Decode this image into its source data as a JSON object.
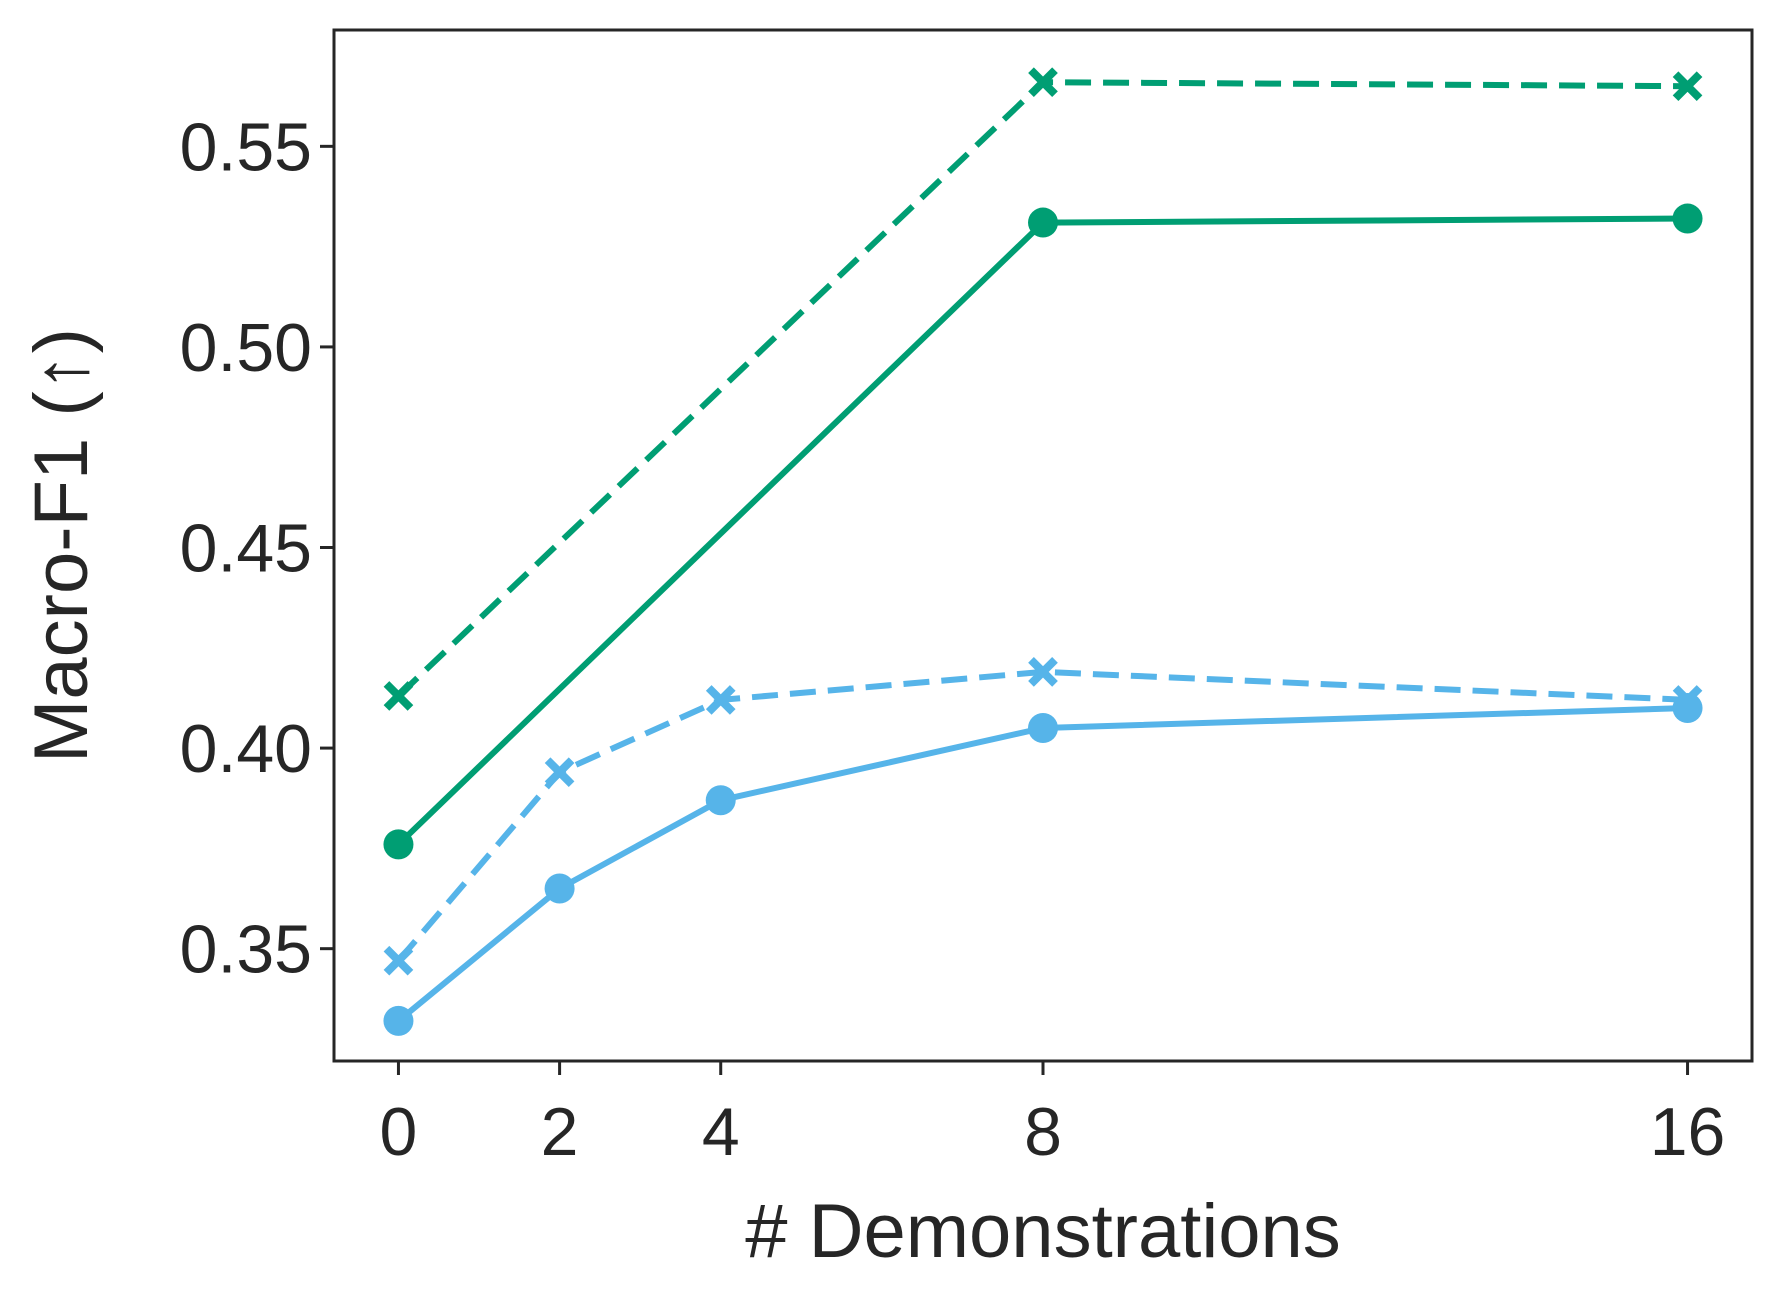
{
  "chart_data": {
    "type": "line",
    "title": "",
    "xlabel": "# Demonstrations",
    "ylabel": "Macro-F1 (↑)",
    "x": [
      0,
      2,
      4,
      8,
      16
    ],
    "x_tick_labels": [
      "0",
      "2",
      "4",
      "8",
      "16"
    ],
    "y_ticks": [
      0.35,
      0.4,
      0.45,
      0.5,
      0.55
    ],
    "y_tick_labels": [
      "0.35",
      "0.40",
      "0.45",
      "0.50",
      "0.55"
    ],
    "xlim": [
      -0.8,
      16.8
    ],
    "ylim": [
      0.322,
      0.579
    ],
    "grid": false,
    "legend": "none",
    "series": [
      {
        "key": "green-dashed",
        "color": "#009E73",
        "line_style": "dashed",
        "marker": "x",
        "x": [
          0,
          8,
          16
        ],
        "values": [
          0.413,
          0.566,
          0.565
        ]
      },
      {
        "key": "green-solid",
        "color": "#009E73",
        "line_style": "solid",
        "marker": "circle",
        "x": [
          0,
          8,
          16
        ],
        "values": [
          0.376,
          0.531,
          0.532
        ]
      },
      {
        "key": "blue-dashed",
        "color": "#56B4E9",
        "line_style": "dashed",
        "marker": "x",
        "x": [
          0,
          2,
          4,
          8,
          16
        ],
        "values": [
          0.347,
          0.394,
          0.412,
          0.419,
          0.412
        ]
      },
      {
        "key": "blue-solid",
        "color": "#56B4E9",
        "line_style": "solid",
        "marker": "circle",
        "x": [
          0,
          2,
          4,
          8,
          16
        ],
        "values": [
          0.332,
          0.365,
          0.387,
          0.405,
          0.41
        ]
      }
    ]
  }
}
